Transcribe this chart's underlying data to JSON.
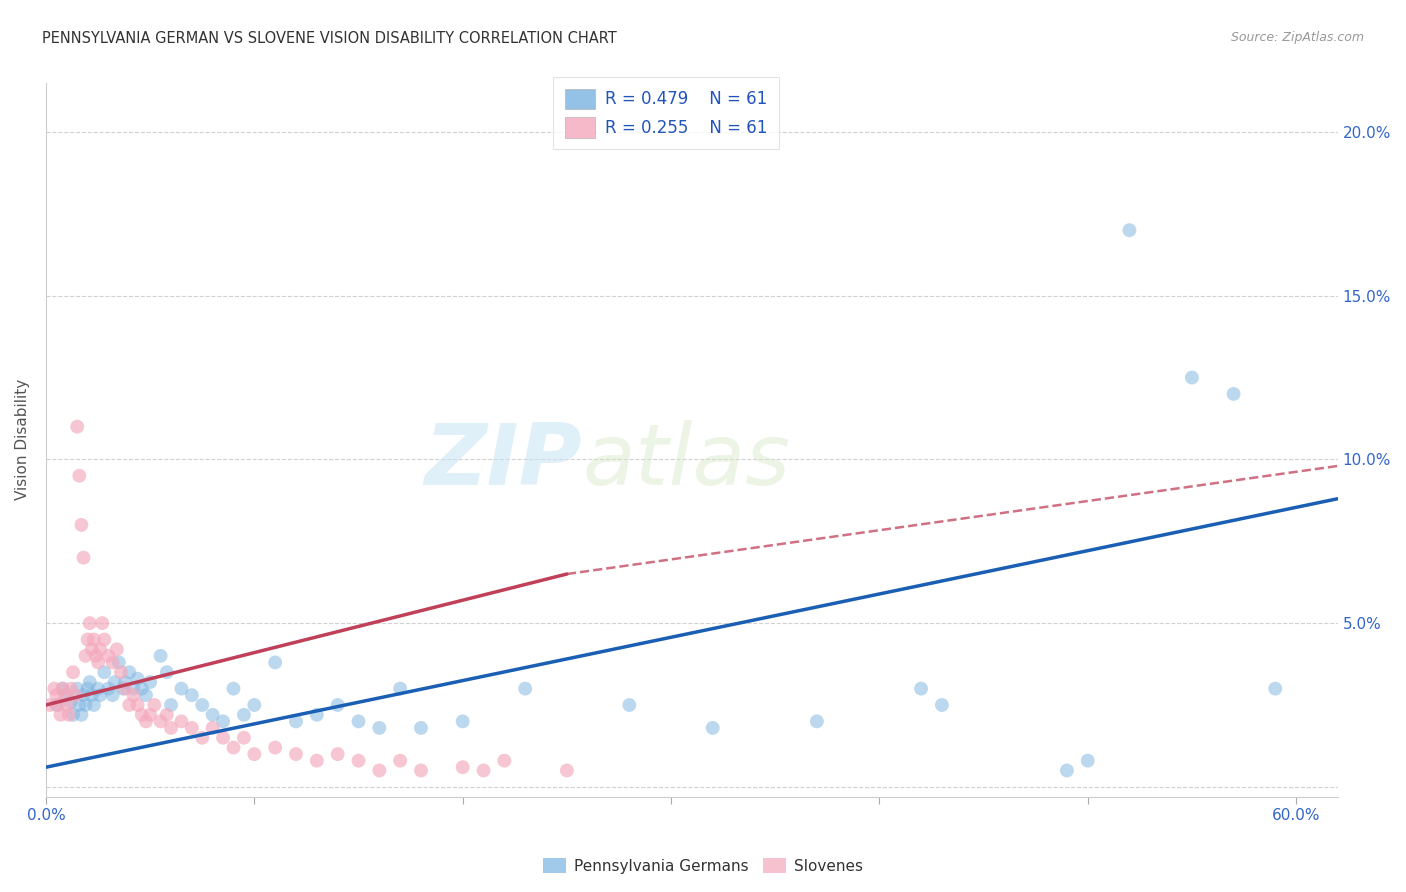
{
  "title": "PENNSYLVANIA GERMAN VS SLOVENE VISION DISABILITY CORRELATION CHART",
  "source": "Source: ZipAtlas.com",
  "ylabel": "Vision Disability",
  "watermark_part1": "ZIP",
  "watermark_part2": "atlas",
  "legend": {
    "blue_R": "R = 0.479",
    "blue_N": "N = 61",
    "pink_R": "R = 0.255",
    "pink_N": "N = 61",
    "blue_label": "Pennsylvania Germans",
    "pink_label": "Slovenes"
  },
  "yticks": [
    0.0,
    0.05,
    0.1,
    0.15,
    0.2
  ],
  "ytick_labels": [
    "",
    "5.0%",
    "10.0%",
    "15.0%",
    "20.0%"
  ],
  "xlim": [
    0.0,
    0.62
  ],
  "ylim": [
    -0.003,
    0.215
  ],
  "blue_color": "#7ab3e0",
  "pink_color": "#f4a8bc",
  "blue_line_color": "#1a5fb4",
  "pink_line_color": "#c0405a",
  "blue_scatter": [
    [
      0.005,
      0.025
    ],
    [
      0.008,
      0.03
    ],
    [
      0.01,
      0.028
    ],
    [
      0.012,
      0.026
    ],
    [
      0.013,
      0.022
    ],
    [
      0.015,
      0.03
    ],
    [
      0.016,
      0.025
    ],
    [
      0.017,
      0.022
    ],
    [
      0.018,
      0.028
    ],
    [
      0.019,
      0.025
    ],
    [
      0.02,
      0.03
    ],
    [
      0.021,
      0.032
    ],
    [
      0.022,
      0.028
    ],
    [
      0.023,
      0.025
    ],
    [
      0.025,
      0.03
    ],
    [
      0.026,
      0.028
    ],
    [
      0.028,
      0.035
    ],
    [
      0.03,
      0.03
    ],
    [
      0.032,
      0.028
    ],
    [
      0.033,
      0.032
    ],
    [
      0.035,
      0.038
    ],
    [
      0.037,
      0.03
    ],
    [
      0.038,
      0.032
    ],
    [
      0.04,
      0.035
    ],
    [
      0.042,
      0.03
    ],
    [
      0.044,
      0.033
    ],
    [
      0.046,
      0.03
    ],
    [
      0.048,
      0.028
    ],
    [
      0.05,
      0.032
    ],
    [
      0.055,
      0.04
    ],
    [
      0.058,
      0.035
    ],
    [
      0.06,
      0.025
    ],
    [
      0.065,
      0.03
    ],
    [
      0.07,
      0.028
    ],
    [
      0.075,
      0.025
    ],
    [
      0.08,
      0.022
    ],
    [
      0.085,
      0.02
    ],
    [
      0.09,
      0.03
    ],
    [
      0.095,
      0.022
    ],
    [
      0.1,
      0.025
    ],
    [
      0.11,
      0.038
    ],
    [
      0.12,
      0.02
    ],
    [
      0.13,
      0.022
    ],
    [
      0.14,
      0.025
    ],
    [
      0.15,
      0.02
    ],
    [
      0.16,
      0.018
    ],
    [
      0.17,
      0.03
    ],
    [
      0.18,
      0.018
    ],
    [
      0.2,
      0.02
    ],
    [
      0.23,
      0.03
    ],
    [
      0.28,
      0.025
    ],
    [
      0.32,
      0.018
    ],
    [
      0.37,
      0.02
    ],
    [
      0.42,
      0.03
    ],
    [
      0.43,
      0.025
    ],
    [
      0.49,
      0.005
    ],
    [
      0.5,
      0.008
    ],
    [
      0.52,
      0.17
    ],
    [
      0.55,
      0.125
    ],
    [
      0.57,
      0.12
    ],
    [
      0.59,
      0.03
    ]
  ],
  "pink_scatter": [
    [
      0.002,
      0.025
    ],
    [
      0.004,
      0.03
    ],
    [
      0.005,
      0.028
    ],
    [
      0.006,
      0.025
    ],
    [
      0.007,
      0.022
    ],
    [
      0.008,
      0.03
    ],
    [
      0.009,
      0.028
    ],
    [
      0.01,
      0.025
    ],
    [
      0.011,
      0.022
    ],
    [
      0.012,
      0.03
    ],
    [
      0.013,
      0.035
    ],
    [
      0.014,
      0.028
    ],
    [
      0.015,
      0.11
    ],
    [
      0.016,
      0.095
    ],
    [
      0.017,
      0.08
    ],
    [
      0.018,
      0.07
    ],
    [
      0.019,
      0.04
    ],
    [
      0.02,
      0.045
    ],
    [
      0.021,
      0.05
    ],
    [
      0.022,
      0.042
    ],
    [
      0.023,
      0.045
    ],
    [
      0.024,
      0.04
    ],
    [
      0.025,
      0.038
    ],
    [
      0.026,
      0.042
    ],
    [
      0.027,
      0.05
    ],
    [
      0.028,
      0.045
    ],
    [
      0.03,
      0.04
    ],
    [
      0.032,
      0.038
    ],
    [
      0.034,
      0.042
    ],
    [
      0.036,
      0.035
    ],
    [
      0.038,
      0.03
    ],
    [
      0.04,
      0.025
    ],
    [
      0.042,
      0.028
    ],
    [
      0.044,
      0.025
    ],
    [
      0.046,
      0.022
    ],
    [
      0.048,
      0.02
    ],
    [
      0.05,
      0.022
    ],
    [
      0.052,
      0.025
    ],
    [
      0.055,
      0.02
    ],
    [
      0.058,
      0.022
    ],
    [
      0.06,
      0.018
    ],
    [
      0.065,
      0.02
    ],
    [
      0.07,
      0.018
    ],
    [
      0.075,
      0.015
    ],
    [
      0.08,
      0.018
    ],
    [
      0.085,
      0.015
    ],
    [
      0.09,
      0.012
    ],
    [
      0.095,
      0.015
    ],
    [
      0.1,
      0.01
    ],
    [
      0.11,
      0.012
    ],
    [
      0.12,
      0.01
    ],
    [
      0.13,
      0.008
    ],
    [
      0.14,
      0.01
    ],
    [
      0.15,
      0.008
    ],
    [
      0.16,
      0.005
    ],
    [
      0.17,
      0.008
    ],
    [
      0.18,
      0.005
    ],
    [
      0.2,
      0.006
    ],
    [
      0.21,
      0.005
    ],
    [
      0.22,
      0.008
    ],
    [
      0.25,
      0.005
    ]
  ],
  "blue_line": {
    "x0": 0.0,
    "y0": 0.006,
    "x1": 0.62,
    "y1": 0.088
  },
  "pink_line_solid": {
    "x0": 0.0,
    "y0": 0.025,
    "x1": 0.25,
    "y1": 0.065
  },
  "pink_line_dashed": {
    "x0": 0.25,
    "y0": 0.065,
    "x1": 0.62,
    "y1": 0.098
  },
  "background_color": "#ffffff",
  "grid_color": "#cccccc"
}
